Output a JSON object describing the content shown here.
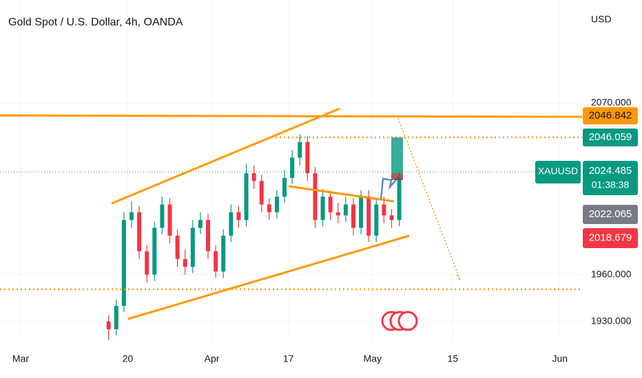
{
  "chart_data": {
    "type": "candlestick",
    "title": "Gold Spot / U.S. Dollar, 4h, OANDA",
    "currency": "USD",
    "symbol": "XAUUSD",
    "countdown": "01:38:38",
    "up_color": "#089981",
    "down_color": "#f23645",
    "x": [
      11.5,
      12.5,
      13.5,
      14.5,
      15.5,
      16.5,
      17.5,
      18.5,
      19.5,
      20.5,
      21.5,
      22.5,
      23.5,
      24.5,
      25.5,
      26.5,
      27.5,
      28.5,
      29.5,
      30.5,
      31.5,
      32.5,
      33.5,
      34.5,
      35.5,
      36.5,
      37.5,
      38.5,
      39.5,
      40.5,
      41.5,
      42.5,
      43.5,
      44.5,
      45.5,
      46.5,
      47.5,
      48.5,
      49.5
    ],
    "open": [
      1930,
      1925,
      1940,
      1995,
      2000,
      1975,
      1960,
      1990,
      2005,
      1985,
      1970,
      1965,
      1990,
      1995,
      1975,
      1962,
      1985,
      2000,
      1995,
      2025,
      2020,
      2005,
      2000,
      2010,
      2022,
      2035,
      2045,
      2025,
      1995,
      2010,
      2000,
      1998,
      2005,
      1990,
      2010,
      1985,
      2005,
      1998,
      1995
    ],
    "high": [
      1934,
      1944,
      2000,
      2007,
      2004,
      1979,
      1994,
      2010,
      2009,
      1989,
      1976,
      1995,
      2000,
      1999,
      1979,
      1989,
      2005,
      2004,
      2031,
      2030,
      2024,
      2009,
      2014,
      2027,
      2040,
      2050,
      2049,
      2029,
      2015,
      2014,
      2006,
      2010,
      2009,
      2014,
      2014,
      2009,
      2010,
      2002,
      2026
    ],
    "low": [
      1918,
      1921,
      1936,
      1990,
      1970,
      1955,
      1956,
      1986,
      1980,
      1965,
      1960,
      1961,
      1986,
      1970,
      1958,
      1958,
      1981,
      1990,
      1991,
      2015,
      2000,
      1995,
      1996,
      2006,
      2018,
      2030,
      2020,
      1990,
      1991,
      1995,
      1993,
      1994,
      1985,
      1986,
      1981,
      1981,
      1993,
      1990,
      1991
    ],
    "close": [
      1925,
      1940,
      1995,
      2000,
      1975,
      1960,
      1990,
      2005,
      1985,
      1970,
      1965,
      1990,
      1995,
      1975,
      1962,
      1985,
      2000,
      1995,
      2025,
      2020,
      2005,
      2000,
      2010,
      2022,
      2035,
      2045,
      2025,
      1995,
      2010,
      2000,
      1998,
      2005,
      1990,
      2010,
      1985,
      2005,
      1998,
      1995,
      2022
    ],
    "xlim": [
      -2.7,
      73.4
    ],
    "xticks": [
      {
        "value": 0,
        "label": "Mar"
      },
      {
        "value": 14,
        "label": "20"
      },
      {
        "value": 25,
        "label": "Apr"
      },
      {
        "value": 35,
        "label": "17"
      },
      {
        "value": 46,
        "label": "May"
      },
      {
        "value": 56.5,
        "label": "15"
      },
      {
        "value": 70.5,
        "label": "Jun"
      }
    ],
    "ylim": [
      1918,
      2136
    ],
    "yticks": [
      {
        "value": 1930,
        "label": "1930.000"
      },
      {
        "value": 1960,
        "label": "1960.000"
      },
      {
        "value": 2070,
        "label": "2070.000"
      }
    ],
    "price_tags": [
      {
        "label": "2046.842",
        "color": "#ff9800"
      },
      {
        "label": "2046.059",
        "color": "#089981"
      },
      {
        "label": "2024.485",
        "color": "#089981"
      },
      {
        "label": "2022.065",
        "color": "#787b86"
      },
      {
        "label": "2018.679",
        "color": "#f23645"
      }
    ]
  }
}
